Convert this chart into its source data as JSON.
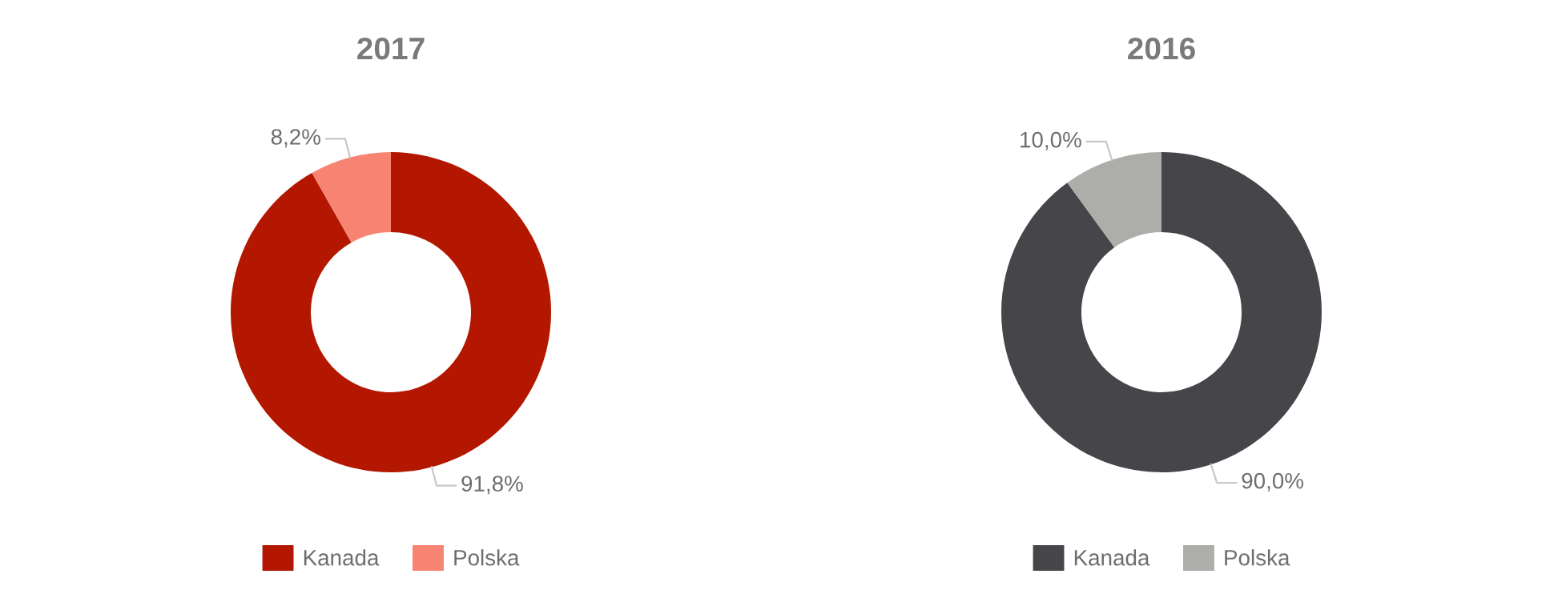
{
  "chart_data": [
    {
      "type": "donut",
      "title": "2017",
      "categories": [
        "Kanada",
        "Polska"
      ],
      "values": [
        91.8,
        8.2
      ],
      "colors": [
        "#b31700",
        "#f78472"
      ],
      "value_labels": [
        "91,8%",
        "8,2%"
      ],
      "legend": "bottom"
    },
    {
      "type": "donut",
      "title": "2016",
      "categories": [
        "Kanada",
        "Polska"
      ],
      "values": [
        90.0,
        10.0
      ],
      "colors": [
        "#46464a",
        "#adadaa"
      ],
      "value_labels": [
        "90,0%",
        "10,0%"
      ],
      "legend": "bottom"
    }
  ]
}
